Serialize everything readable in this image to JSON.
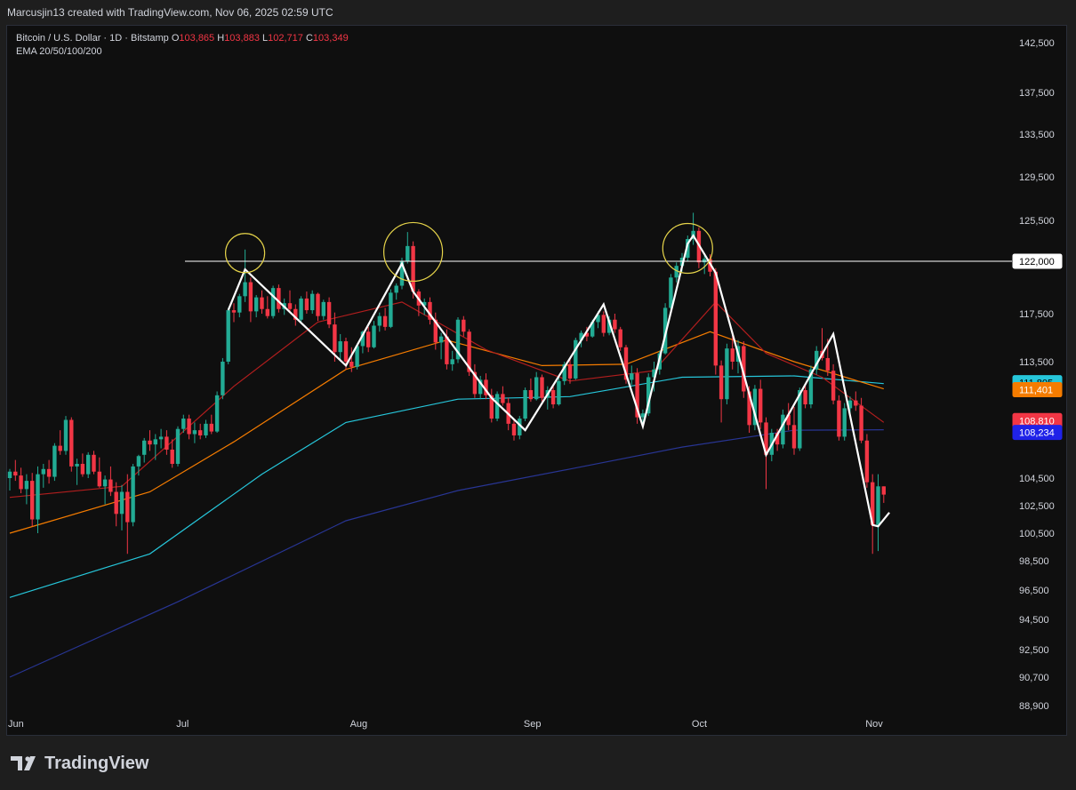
{
  "header": {
    "attribution": "Marcusjin13 created with TradingView.com, Nov 06, 2025 02:59 UTC"
  },
  "legend": {
    "symbol": "Bitcoin / U.S. Dollar · 1D · Bitstamp",
    "o_label": "O",
    "o_value": "103,865",
    "h_label": "H",
    "h_value": "103,883",
    "l_label": "L",
    "l_value": "102,717",
    "c_label": "C",
    "c_value": "103,349",
    "indicator": "EMA 20/50/100/200"
  },
  "footer": {
    "brand": "TradingView"
  },
  "colors": {
    "up": "#22ab94",
    "down": "#f23645",
    "ema20": "#b21e1e",
    "ema50": "#f57c00",
    "ema100": "#26c6da",
    "ema200": "#283593",
    "zigzag": "#ffffff",
    "circle": "#e6d44a"
  },
  "chart_data": {
    "type": "candlestick",
    "x_ticks": [
      "Jun",
      "Jul",
      "Aug",
      "Sep",
      "Oct",
      "Nov"
    ],
    "y_ticks": [
      "142,500",
      "137,500",
      "133,500",
      "129,500",
      "125,500",
      "117,500",
      "113,500",
      "104,500",
      "102,500",
      "100,500",
      "98,500",
      "96,500",
      "94,500",
      "92,500",
      "90,700",
      "88,900"
    ],
    "y_tick_values": [
      142500,
      137500,
      133500,
      129500,
      125500,
      117500,
      113500,
      104500,
      102500,
      100500,
      98500,
      96500,
      94500,
      92500,
      90700,
      88900
    ],
    "horizontal_line": {
      "value": 122000,
      "label": "122,000"
    },
    "price_labels": [
      {
        "name": "ema100",
        "value": 111805,
        "label": "111,805",
        "color": "#26c6da"
      },
      {
        "name": "ema50",
        "value": 111401,
        "label": "111,401",
        "color": "#f57c00"
      },
      {
        "name": "ema20",
        "value": 108810,
        "label": "108,810",
        "color": "#f23645"
      },
      {
        "name": "ema200",
        "value": 108234,
        "label": "108,234",
        "color": "#1f22e8"
      }
    ],
    "candles": [
      [
        0,
        104500,
        105200,
        103600,
        105000
      ],
      [
        1,
        105000,
        105900,
        104300,
        104700
      ],
      [
        2,
        104700,
        105300,
        103400,
        103700
      ],
      [
        3,
        103700,
        104800,
        102600,
        104300
      ],
      [
        4,
        104300,
        104900,
        101000,
        101500
      ],
      [
        5,
        101500,
        105400,
        100500,
        104800
      ],
      [
        6,
        104800,
        105600,
        103800,
        105200
      ],
      [
        7,
        105200,
        105900,
        104100,
        104600
      ],
      [
        8,
        104600,
        107200,
        104300,
        107000
      ],
      [
        9,
        107000,
        108200,
        106300,
        106600
      ],
      [
        10,
        106600,
        109300,
        106300,
        109000
      ],
      [
        11,
        109000,
        109200,
        105000,
        105400
      ],
      [
        12,
        105400,
        106000,
        104000,
        105600
      ],
      [
        13,
        105600,
        106400,
        104600,
        104800
      ],
      [
        14,
        104800,
        106500,
        104500,
        106300
      ],
      [
        15,
        106300,
        106600,
        104800,
        105000
      ],
      [
        16,
        105000,
        106100,
        103800,
        103900
      ],
      [
        17,
        103900,
        104700,
        102600,
        104400
      ],
      [
        18,
        104400,
        105400,
        103200,
        103500
      ],
      [
        19,
        103500,
        104200,
        101000,
        101900
      ],
      [
        20,
        101900,
        104000,
        100700,
        103500
      ],
      [
        21,
        103500,
        104800,
        99000,
        101300
      ],
      [
        22,
        101300,
        105600,
        101000,
        105400
      ],
      [
        23,
        105400,
        106300,
        104700,
        106200
      ],
      [
        24,
        106300,
        107600,
        105700,
        107400
      ],
      [
        25,
        107400,
        108200,
        106600,
        107100
      ],
      [
        26,
        107100,
        107900,
        105900,
        107500
      ],
      [
        27,
        107500,
        108300,
        106800,
        107700
      ],
      [
        28,
        107700,
        108200,
        106300,
        106700
      ],
      [
        29,
        106700,
        107500,
        105300,
        105600
      ],
      [
        30,
        105600,
        108500,
        105400,
        108300
      ],
      [
        31,
        108300,
        109400,
        108000,
        109100
      ],
      [
        32,
        109100,
        109400,
        107500,
        107900
      ],
      [
        33,
        107900,
        108800,
        107200,
        108200
      ],
      [
        34,
        108200,
        108700,
        107500,
        107800
      ],
      [
        35,
        107800,
        109000,
        107600,
        108700
      ],
      [
        36,
        108700,
        109400,
        107900,
        108100
      ],
      [
        37,
        108100,
        111200,
        108000,
        110900
      ],
      [
        38,
        110900,
        113800,
        110600,
        113500
      ],
      [
        39,
        113500,
        118000,
        113300,
        117800
      ],
      [
        40,
        117800,
        118400,
        116800,
        117600
      ],
      [
        41,
        117600,
        119200,
        117200,
        119000
      ],
      [
        42,
        119000,
        123000,
        118500,
        120200
      ],
      [
        43,
        120200,
        120600,
        116800,
        117700
      ],
      [
        44,
        117700,
        119100,
        117200,
        118900
      ],
      [
        45,
        118900,
        119500,
        117500,
        117900
      ],
      [
        46,
        117900,
        119000,
        117100,
        117300
      ],
      [
        47,
        117300,
        119900,
        117100,
        119700
      ],
      [
        48,
        119700,
        120000,
        117600,
        117900
      ],
      [
        49,
        117900,
        118800,
        117400,
        118400
      ],
      [
        50,
        118400,
        119500,
        117600,
        117900
      ],
      [
        51,
        117900,
        118300,
        116500,
        117000
      ],
      [
        52,
        117000,
        119000,
        116800,
        118800
      ],
      [
        53,
        118800,
        119400,
        117500,
        117800
      ],
      [
        54,
        117800,
        119500,
        117500,
        119200
      ],
      [
        55,
        119200,
        119300,
        116900,
        117300
      ],
      [
        56,
        117300,
        118700,
        117000,
        118500
      ],
      [
        57,
        118500,
        118900,
        116300,
        116600
      ],
      [
        58,
        116600,
        117600,
        113500,
        114300
      ],
      [
        59,
        114300,
        115800,
        113500,
        115200
      ],
      [
        60,
        115200,
        115500,
        112900,
        113500
      ],
      [
        61,
        113500,
        114700,
        112700,
        113100
      ],
      [
        62,
        113100,
        115000,
        112900,
        114800
      ],
      [
        63,
        114800,
        116100,
        114200,
        116000
      ],
      [
        64,
        116000,
        116400,
        114300,
        114700
      ],
      [
        65,
        114700,
        116900,
        114600,
        116500
      ],
      [
        66,
        116500,
        117600,
        116000,
        117300
      ],
      [
        67,
        117300,
        118000,
        116100,
        116400
      ],
      [
        68,
        116400,
        119600,
        116300,
        119300
      ],
      [
        69,
        119300,
        120100,
        118700,
        119900
      ],
      [
        70,
        119900,
        122300,
        119600,
        122000
      ],
      [
        71,
        122000,
        124500,
        121800,
        123300
      ],
      [
        72,
        123300,
        123700,
        118800,
        119400
      ],
      [
        73,
        119400,
        119600,
        117300,
        118200
      ],
      [
        74,
        118200,
        118800,
        117400,
        118500
      ],
      [
        75,
        118500,
        118900,
        116600,
        117000
      ],
      [
        76,
        117000,
        117600,
        114500,
        115100
      ],
      [
        77,
        115100,
        115900,
        113700,
        115600
      ],
      [
        78,
        115600,
        116200,
        112900,
        113300
      ],
      [
        79,
        113300,
        114400,
        112800,
        113700
      ],
      [
        80,
        113700,
        117200,
        113400,
        117000
      ],
      [
        81,
        117000,
        117300,
        115600,
        116000
      ],
      [
        82,
        116000,
        116200,
        112400,
        112700
      ],
      [
        83,
        112700,
        113300,
        110700,
        111000
      ],
      [
        84,
        111000,
        112400,
        110600,
        112100
      ],
      [
        85,
        112100,
        112600,
        110600,
        110900
      ],
      [
        86,
        110900,
        111400,
        108800,
        109100
      ],
      [
        87,
        109100,
        111200,
        108900,
        111000
      ],
      [
        88,
        111000,
        111600,
        110100,
        110300
      ],
      [
        89,
        110300,
        110700,
        108200,
        108700
      ],
      [
        90,
        108700,
        109100,
        107400,
        107800
      ],
      [
        91,
        107800,
        109300,
        107500,
        109100
      ],
      [
        92,
        109100,
        111500,
        108900,
        111300
      ],
      [
        93,
        111300,
        112200,
        110400,
        110600
      ],
      [
        94,
        110600,
        112700,
        110500,
        112300
      ],
      [
        95,
        112300,
        112500,
        110400,
        110700
      ],
      [
        96,
        110700,
        111600,
        109800,
        111300
      ],
      [
        97,
        111300,
        111600,
        109900,
        110200
      ],
      [
        98,
        110200,
        112300,
        110100,
        112000
      ],
      [
        99,
        112000,
        113500,
        111700,
        113300
      ],
      [
        100,
        113300,
        113800,
        111800,
        112200
      ],
      [
        101,
        112200,
        115500,
        112100,
        115300
      ],
      [
        102,
        115300,
        116100,
        114700,
        115900
      ],
      [
        103,
        115900,
        116400,
        115200,
        115600
      ],
      [
        104,
        115600,
        117000,
        115500,
        116800
      ],
      [
        105,
        116800,
        117700,
        116300,
        117400
      ],
      [
        106,
        117400,
        117700,
        115600,
        115900
      ],
      [
        107,
        115900,
        117300,
        115700,
        117000
      ],
      [
        108,
        117000,
        117500,
        115900,
        116200
      ],
      [
        109,
        116200,
        116400,
        114400,
        114700
      ],
      [
        110,
        114700,
        114900,
        111800,
        112100
      ],
      [
        111,
        112100,
        113200,
        111700,
        112600
      ],
      [
        112,
        112600,
        113000,
        108700,
        109200
      ],
      [
        113,
        109200,
        109800,
        108400,
        109500
      ],
      [
        114,
        109500,
        112600,
        109300,
        112300
      ],
      [
        115,
        112300,
        113500,
        111200,
        112900
      ],
      [
        116,
        112900,
        114400,
        112500,
        114200
      ],
      [
        117,
        114200,
        118400,
        114100,
        118000
      ],
      [
        118,
        118000,
        120900,
        117700,
        120600
      ],
      [
        119,
        120600,
        121900,
        120200,
        121600
      ],
      [
        120,
        121600,
        122700,
        121100,
        122300
      ],
      [
        121,
        122300,
        124200,
        122000,
        123900
      ],
      [
        122,
        123900,
        126200,
        123400,
        124600
      ],
      [
        123,
        124600,
        124900,
        121400,
        121900
      ],
      [
        124,
        121900,
        122500,
        120900,
        122200
      ],
      [
        125,
        122200,
        122600,
        120700,
        121100
      ],
      [
        126,
        121100,
        121400,
        112500,
        113200
      ],
      [
        127,
        113200,
        113600,
        108800,
        110600
      ],
      [
        128,
        110600,
        115000,
        110200,
        114600
      ],
      [
        129,
        114600,
        116000,
        112900,
        113500
      ],
      [
        130,
        113500,
        115300,
        112600,
        114800
      ],
      [
        131,
        114800,
        115200,
        110700,
        111200
      ],
      [
        132,
        111200,
        111600,
        108000,
        108600
      ],
      [
        133,
        108600,
        111700,
        108200,
        111400
      ],
      [
        134,
        111400,
        112100,
        108300,
        108800
      ],
      [
        135,
        108800,
        109200,
        103700,
        106300
      ],
      [
        136,
        106300,
        108300,
        105800,
        108000
      ],
      [
        137,
        108000,
        108300,
        106600,
        107100
      ],
      [
        138,
        107100,
        109800,
        106800,
        109400
      ],
      [
        139,
        109400,
        110300,
        108200,
        108600
      ],
      [
        140,
        108600,
        110000,
        106300,
        106800
      ],
      [
        141,
        106800,
        111500,
        106600,
        111300
      ],
      [
        142,
        111300,
        111800,
        109900,
        110200
      ],
      [
        143,
        110200,
        113200,
        109900,
        112900
      ],
      [
        144,
        112900,
        114800,
        112500,
        114400
      ],
      [
        145,
        114400,
        116300,
        113600,
        113800
      ],
      [
        146,
        113800,
        115400,
        112400,
        112800
      ],
      [
        147,
        112800,
        113300,
        110200,
        110500
      ],
      [
        148,
        110500,
        110900,
        107400,
        107700
      ],
      [
        149,
        107700,
        110300,
        107400,
        109900
      ],
      [
        150,
        109900,
        110800,
        109400,
        110500
      ],
      [
        151,
        110500,
        111200,
        109700,
        110100
      ],
      [
        152,
        110100,
        110700,
        107200,
        107400
      ],
      [
        153,
        107400,
        107900,
        103800,
        104200
      ],
      [
        154,
        104200,
        104800,
        99000,
        101100
      ],
      [
        155,
        101100,
        104800,
        99200,
        103900
      ],
      [
        156,
        103900,
        103900,
        102700,
        103300
      ]
    ],
    "ema20": [
      [
        0,
        103100
      ],
      [
        20,
        103900
      ],
      [
        40,
        111600
      ],
      [
        55,
        116800
      ],
      [
        70,
        118500
      ],
      [
        85,
        114500
      ],
      [
        100,
        112000
      ],
      [
        115,
        112800
      ],
      [
        126,
        118500
      ],
      [
        135,
        114200
      ],
      [
        145,
        112300
      ],
      [
        156,
        108810
      ]
    ],
    "ema50": [
      [
        0,
        100500
      ],
      [
        25,
        103500
      ],
      [
        40,
        107300
      ],
      [
        60,
        112900
      ],
      [
        78,
        115300
      ],
      [
        95,
        113200
      ],
      [
        110,
        113300
      ],
      [
        125,
        116000
      ],
      [
        140,
        113500
      ],
      [
        156,
        111401
      ]
    ],
    "ema100": [
      [
        0,
        96000
      ],
      [
        25,
        99000
      ],
      [
        45,
        104800
      ],
      [
        60,
        108800
      ],
      [
        80,
        110600
      ],
      [
        100,
        110800
      ],
      [
        120,
        112300
      ],
      [
        140,
        112400
      ],
      [
        156,
        111805
      ]
    ],
    "ema200": [
      [
        0,
        90700
      ],
      [
        30,
        95700
      ],
      [
        60,
        101400
      ],
      [
        80,
        103600
      ],
      [
        100,
        105200
      ],
      [
        120,
        106900
      ],
      [
        140,
        108200
      ],
      [
        156,
        108234
      ]
    ],
    "zigzag": [
      [
        39,
        117800
      ],
      [
        42,
        121300
      ],
      [
        60,
        113200
      ],
      [
        70,
        121800
      ],
      [
        72,
        119400
      ],
      [
        86,
        110700
      ],
      [
        92,
        108200
      ],
      [
        106,
        118300
      ],
      [
        113,
        108500
      ],
      [
        121,
        123500
      ],
      [
        122,
        124200
      ],
      [
        126,
        121000
      ],
      [
        135,
        106300
      ],
      [
        147,
        115800
      ],
      [
        154,
        101100
      ],
      [
        155,
        101000
      ],
      [
        157,
        102000
      ]
    ],
    "circles": [
      [
        42,
        122700,
        22
      ],
      [
        72,
        122800,
        33
      ],
      [
        121,
        123100,
        28
      ]
    ]
  }
}
